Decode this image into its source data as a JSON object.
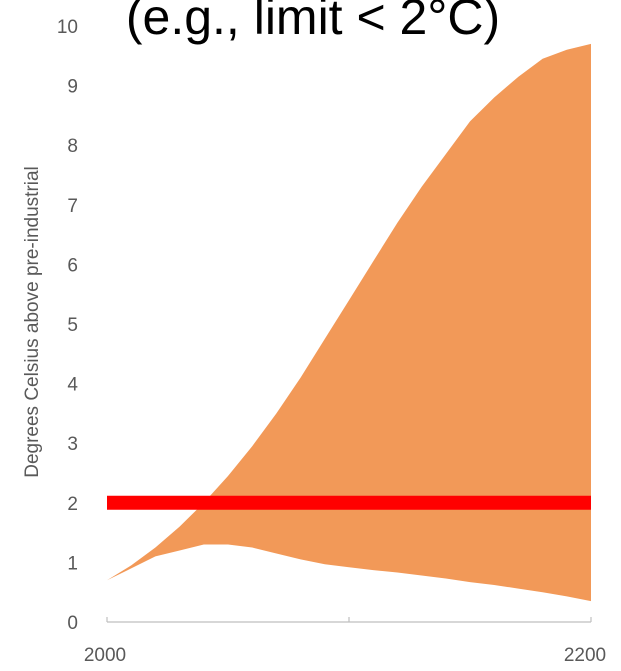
{
  "chart_data": {
    "type": "area",
    "title": "(e.g., limit < 2°C)",
    "ylabel": "Degrees Celsius above pre-industrial",
    "xlabel": "",
    "xlim": [
      2000,
      2200
    ],
    "ylim": [
      0,
      10
    ],
    "x_tick_labels": [
      "2000",
      "2200"
    ],
    "y_ticks": [
      0,
      1,
      2,
      3,
      4,
      5,
      6,
      7,
      8,
      9,
      10
    ],
    "grid": false,
    "x": [
      2000,
      2010,
      2020,
      2030,
      2040,
      2050,
      2060,
      2070,
      2080,
      2090,
      2100,
      2110,
      2120,
      2130,
      2140,
      2150,
      2160,
      2170,
      2180,
      2190,
      2200
    ],
    "band_upper": [
      0.7,
      0.95,
      1.25,
      1.6,
      2.0,
      2.45,
      2.95,
      3.5,
      4.1,
      4.75,
      5.4,
      6.05,
      6.7,
      7.3,
      7.85,
      8.4,
      8.8,
      9.15,
      9.45,
      9.6,
      9.7
    ],
    "band_lower": [
      0.7,
      0.9,
      1.1,
      1.2,
      1.3,
      1.3,
      1.25,
      1.15,
      1.05,
      0.97,
      0.92,
      0.87,
      0.83,
      0.78,
      0.73,
      0.67,
      0.62,
      0.56,
      0.5,
      0.43,
      0.35
    ],
    "limit_line": {
      "y": 2,
      "x_start": 2000,
      "x_end": 2200
    },
    "colors": {
      "band": "#f29958",
      "limit": "#ff0000",
      "axis": "#bfbfbf"
    }
  }
}
